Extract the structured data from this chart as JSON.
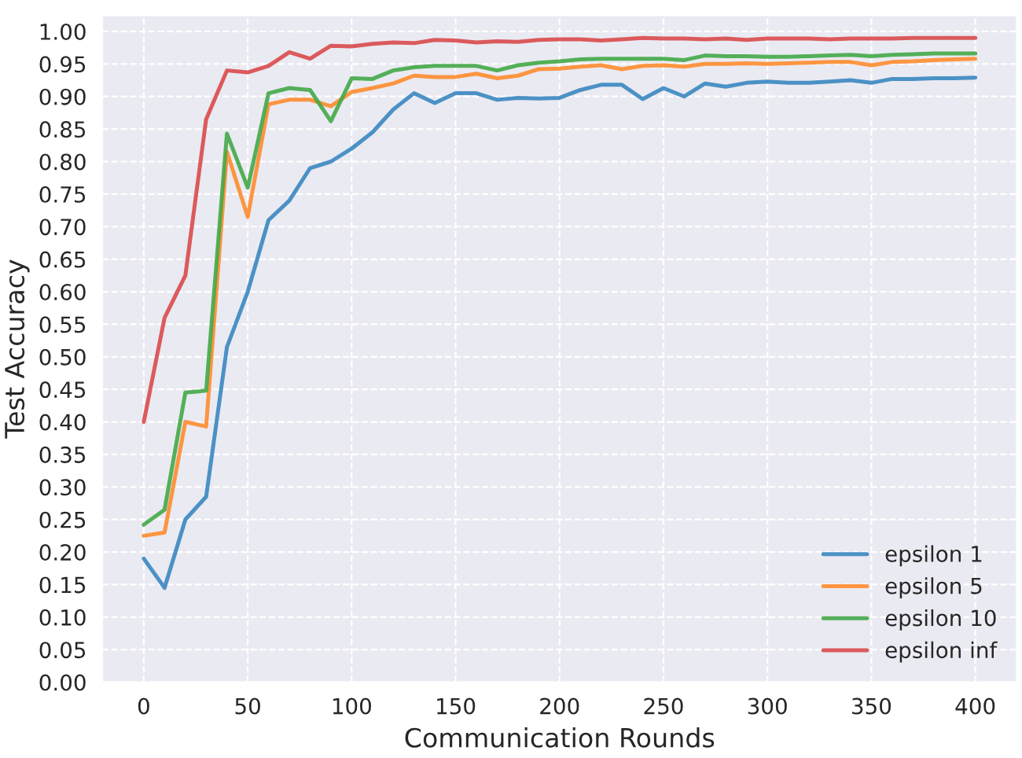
{
  "chart_data": {
    "type": "line",
    "xlabel": "Communication Rounds",
    "ylabel": "Test Accuracy",
    "x": [
      0,
      10,
      20,
      30,
      40,
      50,
      60,
      70,
      80,
      90,
      100,
      110,
      120,
      130,
      140,
      150,
      160,
      170,
      180,
      190,
      200,
      210,
      220,
      230,
      240,
      250,
      260,
      270,
      280,
      290,
      300,
      310,
      320,
      330,
      340,
      350,
      360,
      370,
      380,
      390,
      400
    ],
    "series": [
      {
        "name": "epsilon 1",
        "color": "#3a87c0",
        "values": [
          0.19,
          0.145,
          0.25,
          0.285,
          0.515,
          0.6,
          0.71,
          0.74,
          0.79,
          0.8,
          0.82,
          0.845,
          0.88,
          0.905,
          0.89,
          0.905,
          0.905,
          0.895,
          0.898,
          0.897,
          0.898,
          0.91,
          0.918,
          0.918,
          0.896,
          0.913,
          0.9,
          0.92,
          0.915,
          0.921,
          0.923,
          0.921,
          0.921,
          0.923,
          0.925,
          0.921,
          0.927,
          0.927,
          0.928,
          0.928,
          0.929
        ]
      },
      {
        "name": "epsilon 5",
        "color": "#fe8c2e",
        "values": [
          0.225,
          0.23,
          0.4,
          0.393,
          0.815,
          0.715,
          0.888,
          0.895,
          0.895,
          0.885,
          0.907,
          0.913,
          0.92,
          0.932,
          0.93,
          0.93,
          0.935,
          0.928,
          0.932,
          0.942,
          0.943,
          0.946,
          0.948,
          0.942,
          0.947,
          0.948,
          0.946,
          0.95,
          0.95,
          0.951,
          0.95,
          0.951,
          0.952,
          0.953,
          0.953,
          0.948,
          0.953,
          0.954,
          0.956,
          0.957,
          0.958
        ]
      },
      {
        "name": "epsilon 10",
        "color": "#42a847",
        "values": [
          0.242,
          0.265,
          0.445,
          0.448,
          0.843,
          0.76,
          0.905,
          0.913,
          0.91,
          0.862,
          0.928,
          0.927,
          0.94,
          0.945,
          0.947,
          0.947,
          0.947,
          0.94,
          0.948,
          0.952,
          0.954,
          0.957,
          0.958,
          0.958,
          0.958,
          0.958,
          0.956,
          0.963,
          0.962,
          0.962,
          0.961,
          0.961,
          0.962,
          0.963,
          0.964,
          0.962,
          0.964,
          0.965,
          0.966,
          0.966,
          0.966
        ]
      },
      {
        "name": "epsilon inf",
        "color": "#d94a4b",
        "values": [
          0.4,
          0.56,
          0.625,
          0.865,
          0.94,
          0.937,
          0.947,
          0.968,
          0.958,
          0.978,
          0.977,
          0.981,
          0.983,
          0.982,
          0.987,
          0.986,
          0.983,
          0.985,
          0.984,
          0.987,
          0.988,
          0.988,
          0.986,
          0.988,
          0.99,
          0.989,
          0.989,
          0.988,
          0.989,
          0.987,
          0.989,
          0.989,
          0.989,
          0.988,
          0.989,
          0.989,
          0.989,
          0.99,
          0.99,
          0.99,
          0.99
        ]
      }
    ],
    "xlim": [
      -20,
      420
    ],
    "ylim": [
      0,
      1.025
    ],
    "xticks": [
      0,
      50,
      100,
      150,
      200,
      250,
      300,
      350,
      400
    ],
    "yticks": [
      {
        "value": 0,
        "label": "0.00"
      },
      {
        "value": 0.05,
        "label": "0.05"
      },
      {
        "value": 0.1,
        "label": "0.10"
      },
      {
        "value": 0.15,
        "label": "0.15"
      },
      {
        "value": 0.2,
        "label": "0.20"
      },
      {
        "value": 0.25,
        "label": "0.25"
      },
      {
        "value": 0.3,
        "label": "0.30"
      },
      {
        "value": 0.35,
        "label": "0.35"
      },
      {
        "value": 0.4,
        "label": "0.40"
      },
      {
        "value": 0.45,
        "label": "0.45"
      },
      {
        "value": 0.5,
        "label": "0.50"
      },
      {
        "value": 0.55,
        "label": "0.55"
      },
      {
        "value": 0.6,
        "label": "0.60"
      },
      {
        "value": 0.65,
        "label": "0.65"
      },
      {
        "value": 0.7,
        "label": "0.70"
      },
      {
        "value": 0.75,
        "label": "0.75"
      },
      {
        "value": 0.8,
        "label": "0.80"
      },
      {
        "value": 0.85,
        "label": "0.85"
      },
      {
        "value": 0.9,
        "label": "0.90"
      },
      {
        "value": 0.95,
        "label": "0.95"
      },
      {
        "value": 1.0,
        "label": "1.00"
      }
    ],
    "grid": true,
    "legend": "bottom right",
    "line_style": "solid",
    "marker": "none"
  }
}
